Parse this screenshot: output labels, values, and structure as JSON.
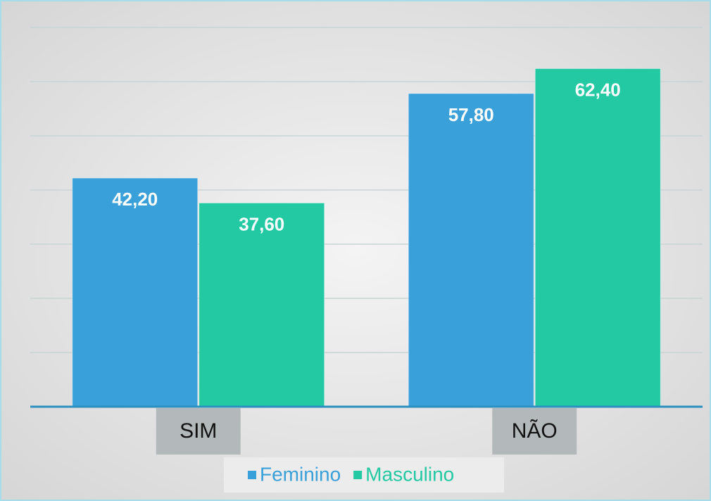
{
  "chart_data": {
    "type": "bar",
    "categories": [
      "SIM",
      "NÃO"
    ],
    "series": [
      {
        "name": "Feminino",
        "color": "#3aa0d9",
        "values": [
          42.2,
          57.8
        ],
        "value_labels": [
          "42,20",
          "57,80"
        ]
      },
      {
        "name": "Masculino",
        "color": "#22c9a3",
        "values": [
          37.6,
          62.4
        ],
        "value_labels": [
          "37,60",
          "62,40"
        ]
      }
    ],
    "ylim": [
      0,
      70
    ],
    "yticks": [
      0,
      10,
      20,
      30,
      40,
      50,
      60,
      70
    ],
    "grid": true,
    "legend": "bottom"
  }
}
